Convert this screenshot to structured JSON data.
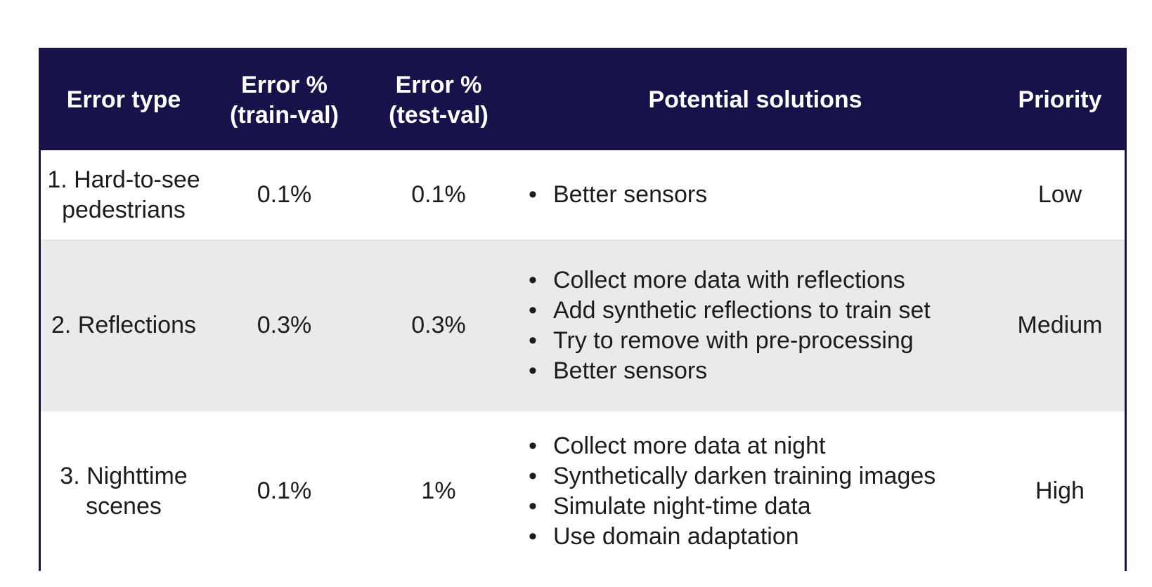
{
  "table": {
    "headers": [
      [
        "Error type"
      ],
      [
        "Error %",
        "(train-val)"
      ],
      [
        "Error %",
        "(test-val)"
      ],
      [
        "Potential solutions"
      ],
      [
        "Priority"
      ]
    ],
    "rows": [
      {
        "error_type": [
          "1. Hard-to-see",
          "pedestrians"
        ],
        "train_val": "0.1%",
        "test_val": "0.1%",
        "solutions": [
          "Better sensors"
        ],
        "priority": "Low"
      },
      {
        "error_type": [
          "2. Reflections"
        ],
        "train_val": "0.3%",
        "test_val": "0.3%",
        "solutions": [
          "Collect more data with reflections",
          "Add synthetic reflections to train set",
          "Try to remove with pre-processing",
          "Better sensors"
        ],
        "priority": "Medium"
      },
      {
        "error_type": [
          "3. Nighttime",
          "scenes"
        ],
        "train_val": "0.1%",
        "test_val": "1%",
        "solutions": [
          "Collect more data at night",
          "Synthetically darken training images",
          "Simulate night-time data",
          "Use domain adaptation"
        ],
        "priority": "High"
      }
    ],
    "bullet": "•",
    "colors": {
      "header_bg": "#17124a",
      "header_text": "#ffffff",
      "shaded_row": "#e9ebeb"
    }
  }
}
